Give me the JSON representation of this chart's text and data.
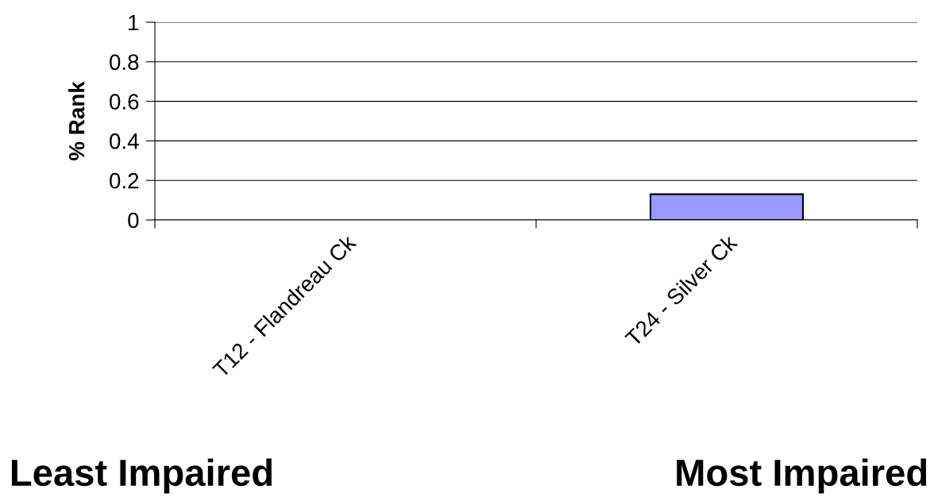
{
  "chart_data": {
    "type": "bar",
    "ylabel": "% Rank",
    "categories": [
      "T12 - Flandreau Ck",
      "T24 - Silver Ck"
    ],
    "values": [
      0,
      0.13
    ],
    "color": "#9999ff",
    "ylim": [
      0,
      1
    ],
    "yticks": [
      0,
      0.2,
      0.4,
      0.6,
      0.8,
      1
    ],
    "grid": "y",
    "annotations": [
      "Least Impaired",
      "Most Impaired"
    ]
  }
}
